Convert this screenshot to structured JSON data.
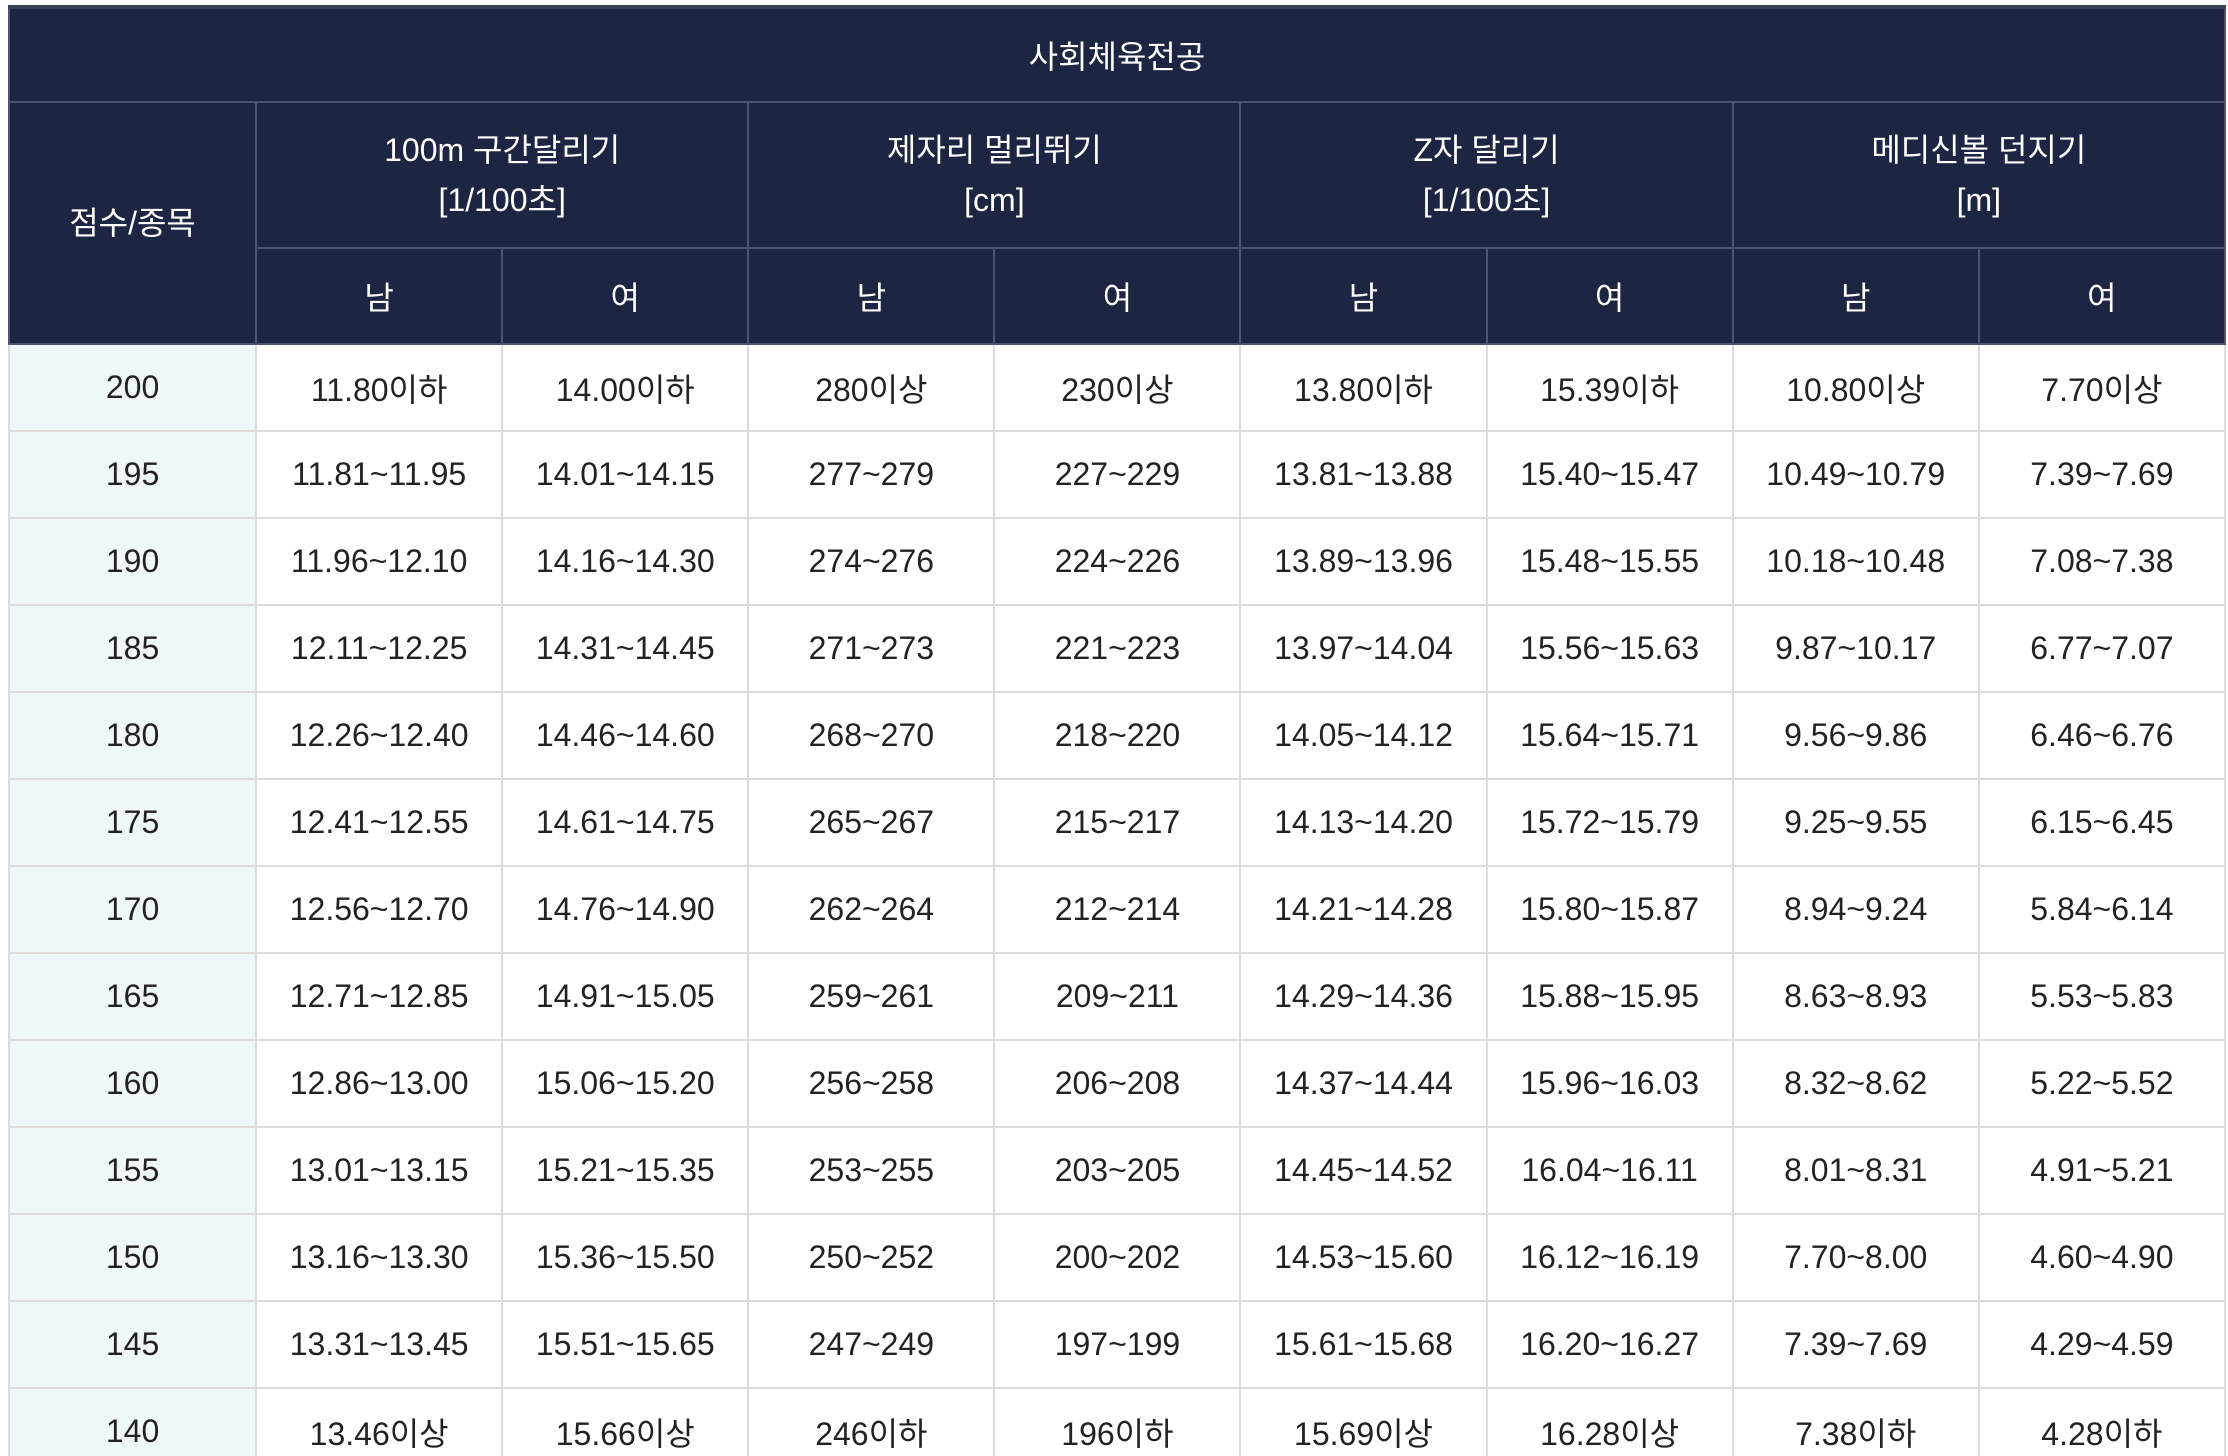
{
  "table": {
    "title": "사회체육전공",
    "score_header": "점수/종목",
    "events": [
      {
        "name": "100m 구간달리기",
        "unit": "[1/100초]"
      },
      {
        "name": "제자리 멀리뛰기",
        "unit": "[cm]"
      },
      {
        "name": "Z자 달리기",
        "unit": "[1/100초]"
      },
      {
        "name": "메디신볼 던지기",
        "unit": "[m]"
      }
    ],
    "genders": [
      "남",
      "여",
      "남",
      "여",
      "남",
      "여",
      "남",
      "여"
    ],
    "rows": [
      {
        "score": "200",
        "cells": [
          "11.80이하",
          "14.00이하",
          "280이상",
          "230이상",
          "13.80이하",
          "15.39이하",
          "10.80이상",
          "7.70이상"
        ]
      },
      {
        "score": "195",
        "cells": [
          "11.81~11.95",
          "14.01~14.15",
          "277~279",
          "227~229",
          "13.81~13.88",
          "15.40~15.47",
          "10.49~10.79",
          "7.39~7.69"
        ]
      },
      {
        "score": "190",
        "cells": [
          "11.96~12.10",
          "14.16~14.30",
          "274~276",
          "224~226",
          "13.89~13.96",
          "15.48~15.55",
          "10.18~10.48",
          "7.08~7.38"
        ]
      },
      {
        "score": "185",
        "cells": [
          "12.11~12.25",
          "14.31~14.45",
          "271~273",
          "221~223",
          "13.97~14.04",
          "15.56~15.63",
          "9.87~10.17",
          "6.77~7.07"
        ]
      },
      {
        "score": "180",
        "cells": [
          "12.26~12.40",
          "14.46~14.60",
          "268~270",
          "218~220",
          "14.05~14.12",
          "15.64~15.71",
          "9.56~9.86",
          "6.46~6.76"
        ]
      },
      {
        "score": "175",
        "cells": [
          "12.41~12.55",
          "14.61~14.75",
          "265~267",
          "215~217",
          "14.13~14.20",
          "15.72~15.79",
          "9.25~9.55",
          "6.15~6.45"
        ]
      },
      {
        "score": "170",
        "cells": [
          "12.56~12.70",
          "14.76~14.90",
          "262~264",
          "212~214",
          "14.21~14.28",
          "15.80~15.87",
          "8.94~9.24",
          "5.84~6.14"
        ]
      },
      {
        "score": "165",
        "cells": [
          "12.71~12.85",
          "14.91~15.05",
          "259~261",
          "209~211",
          "14.29~14.36",
          "15.88~15.95",
          "8.63~8.93",
          "5.53~5.83"
        ]
      },
      {
        "score": "160",
        "cells": [
          "12.86~13.00",
          "15.06~15.20",
          "256~258",
          "206~208",
          "14.37~14.44",
          "15.96~16.03",
          "8.32~8.62",
          "5.22~5.52"
        ]
      },
      {
        "score": "155",
        "cells": [
          "13.01~13.15",
          "15.21~15.35",
          "253~255",
          "203~205",
          "14.45~14.52",
          "16.04~16.11",
          "8.01~8.31",
          "4.91~5.21"
        ]
      },
      {
        "score": "150",
        "cells": [
          "13.16~13.30",
          "15.36~15.50",
          "250~252",
          "200~202",
          "14.53~15.60",
          "16.12~16.19",
          "7.70~8.00",
          "4.60~4.90"
        ]
      },
      {
        "score": "145",
        "cells": [
          "13.31~13.45",
          "15.51~15.65",
          "247~249",
          "197~199",
          "15.61~15.68",
          "16.20~16.27",
          "7.39~7.69",
          "4.29~4.59"
        ]
      },
      {
        "score": "140",
        "cells": [
          "13.46이상",
          "15.66이상",
          "246이하",
          "196이하",
          "15.69이상",
          "16.28이상",
          "7.38이하",
          "4.28이하"
        ]
      }
    ],
    "colors": {
      "header_bg": "#1c2541",
      "score_col_bg": "#eef8fa"
    }
  }
}
